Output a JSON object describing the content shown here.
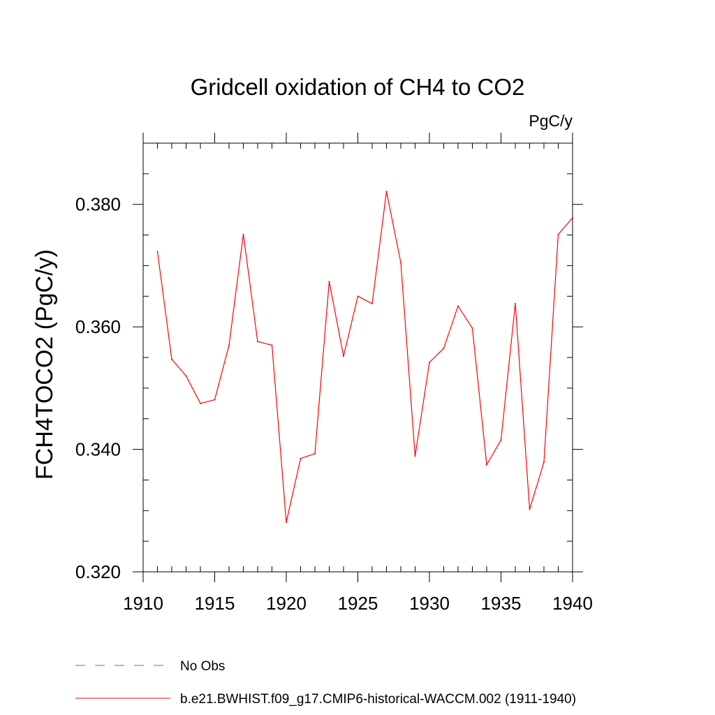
{
  "chart_data": {
    "type": "line",
    "title": "Gridcell oxidation of CH4 to CO2",
    "units": "PgC/y",
    "ylabel": "FCH4TOCO2  (PgC/y)",
    "xlabel": "",
    "xlim": [
      1910,
      1940
    ],
    "ylim": [
      0.32,
      0.39
    ],
    "x_ticks": [
      1910,
      1915,
      1920,
      1925,
      1930,
      1935,
      1940
    ],
    "x_tick_labels": [
      "1910",
      "1915",
      "1920",
      "1925",
      "1930",
      "1935",
      "1940"
    ],
    "y_ticks": [
      0.32,
      0.34,
      0.36,
      0.38
    ],
    "y_tick_labels": [
      "0.320",
      "0.340",
      "0.360",
      "0.380"
    ],
    "x_minor_step": 1,
    "y_minor_step": 0.005,
    "grid": false,
    "legend_position": "bottom-left",
    "series": [
      {
        "name": "b.e21.BWHIST.f09_g17.CMIP6-historical-WACCM.002 (1911-1940)",
        "color": "#ff0000",
        "style": "solid",
        "x": [
          1911,
          1912,
          1913,
          1914,
          1915,
          1916,
          1917,
          1918,
          1919,
          1920,
          1921,
          1922,
          1923,
          1924,
          1925,
          1926,
          1927,
          1928,
          1929,
          1930,
          1931,
          1932,
          1933,
          1934,
          1935,
          1936,
          1937,
          1938,
          1939,
          1940
        ],
        "values": [
          0.3723,
          0.3547,
          0.352,
          0.3475,
          0.3481,
          0.357,
          0.3751,
          0.3576,
          0.357,
          0.3281,
          0.3385,
          0.3393,
          0.3674,
          0.3552,
          0.365,
          0.3638,
          0.3821,
          0.3705,
          0.3389,
          0.3542,
          0.3565,
          0.3634,
          0.3598,
          0.3375,
          0.3415,
          0.3638,
          0.3302,
          0.3379,
          0.3751,
          0.3778
        ]
      },
      {
        "name": "No Obs",
        "color": "#6a6ab8",
        "style": "dashed",
        "x": [],
        "values": []
      }
    ]
  }
}
